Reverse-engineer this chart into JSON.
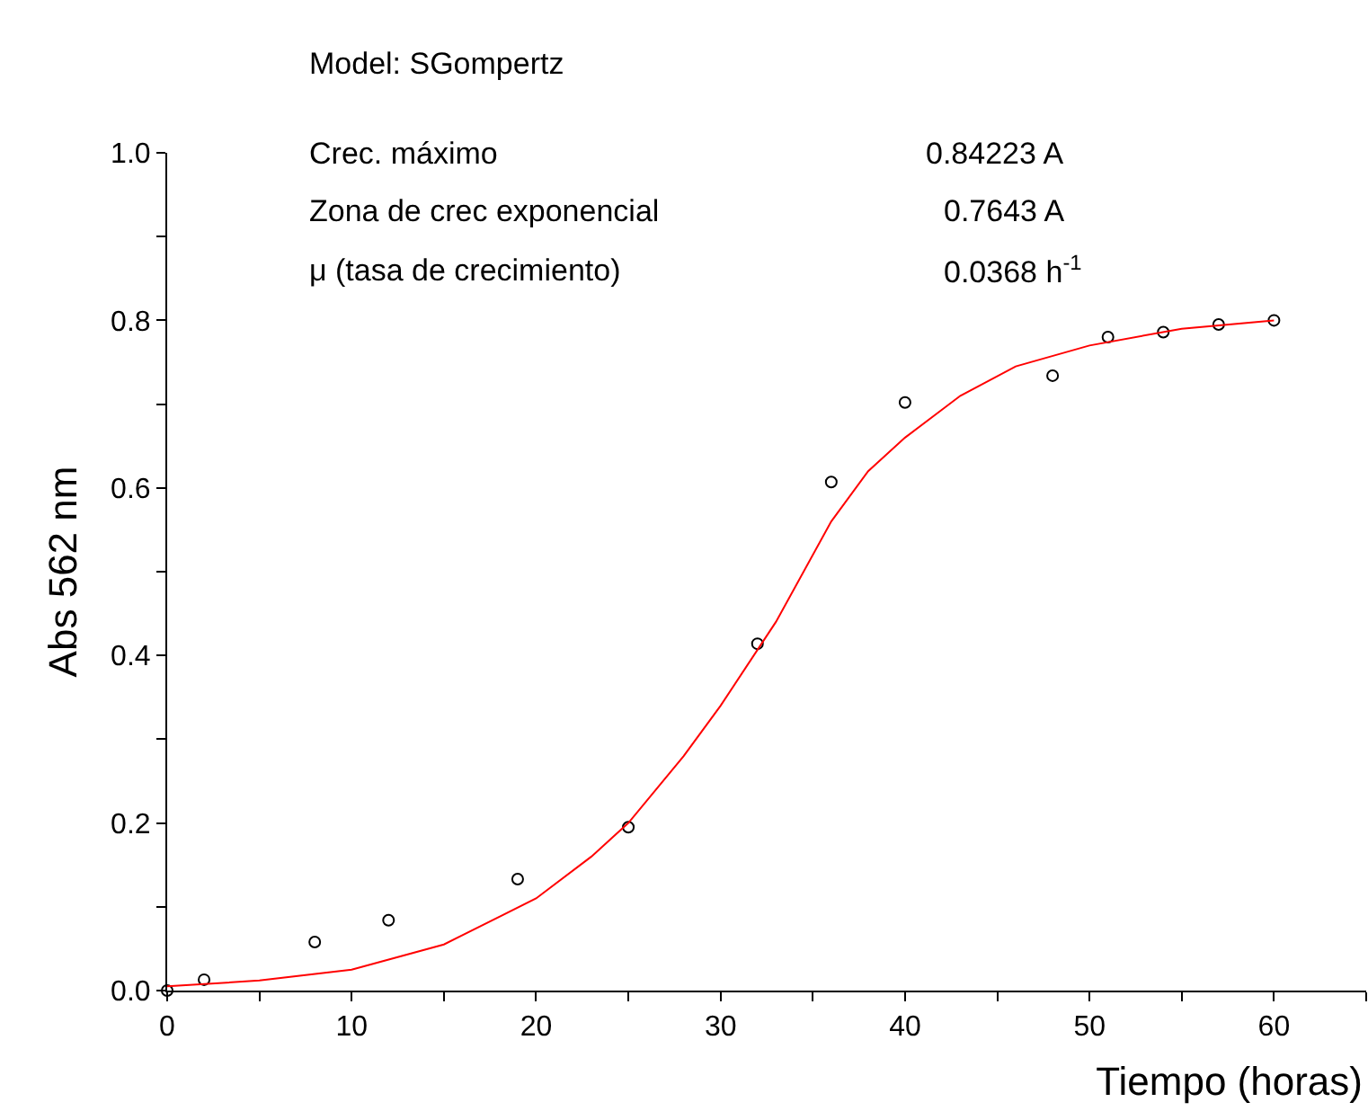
{
  "chart_data": {
    "type": "scatter",
    "xlabel": "Tiempo (horas)",
    "ylabel": "Abs 562 nm",
    "annotations": [
      "Model: SGompertz",
      "Crec. máximo",
      "0.84223 A",
      "Zona de crec exponencial",
      "0.7643 A",
      "μ (tasa de crecimiento)",
      "0.0368 h$^{-1}$"
    ],
    "series": [
      {
        "color": "#000000",
        "x": [
          0,
          2,
          8,
          12,
          19,
          25,
          32,
          36,
          40,
          48,
          51,
          54,
          57,
          60
        ],
        "values": [
          0,
          0.013,
          0.058,
          0.084,
          0.133,
          0.195,
          0.414,
          0.607,
          0.702,
          0.734,
          0.78,
          0.786,
          0.795,
          0.8
        ]
      },
      {
        "type": "line",
        "color": "#ff0000",
        "marker": "none",
        "line_style": "solid",
        "x": [
          0,
          5,
          10,
          15,
          20,
          23,
          25,
          28,
          30,
          33,
          36,
          38,
          40,
          43,
          46,
          50,
          55,
          60
        ],
        "values": [
          0.005,
          0.012,
          0.025,
          0.055,
          0.11,
          0.16,
          0.2,
          0.28,
          0.34,
          0.44,
          0.56,
          0.62,
          0.66,
          0.71,
          0.745,
          0.77,
          0.79,
          0.8
        ]
      }
    ],
    "xlim": [
      0,
      65
    ],
    "xticks": [
      0,
      {
        "value": 5,
        "label": null
      },
      10,
      {
        "value": 15,
        "label": null
      },
      20,
      {
        "value": 25,
        "label": null
      },
      30,
      {
        "value": 35,
        "label": null
      },
      40,
      {
        "value": 45,
        "label": null
      },
      50,
      {
        "value": 55,
        "label": null
      },
      60,
      {
        "value": 65,
        "label": null
      }
    ],
    "ylim": [
      0,
      1.0
    ],
    "yticks": [
      {
        "value": 0,
        "label": "0.0"
      },
      {
        "value": 0.1,
        "label": null
      },
      {
        "value": 0.2,
        "label": "0.2"
      },
      {
        "value": 0.3,
        "label": null
      },
      {
        "value": 0.4,
        "label": "0.4"
      },
      {
        "value": 0.5,
        "label": null
      },
      {
        "value": 0.6,
        "label": "0.6"
      },
      {
        "value": 0.7,
        "label": null
      },
      {
        "value": 0.8,
        "label": "0.8"
      },
      {
        "value": 0.9,
        "label": null
      },
      {
        "value": 1.0,
        "label": "1.0"
      }
    ],
    "marker": "circle"
  }
}
